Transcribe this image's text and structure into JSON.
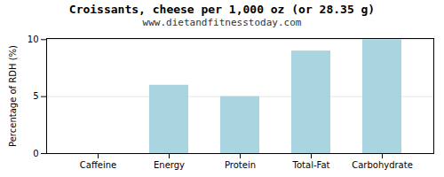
{
  "chart_data": {
    "type": "bar",
    "title": "Croissants, cheese per 1,000 oz (or 28.35 g)",
    "subtitle": "www.dietandfitnesstoday.com",
    "categories": [
      "Caffeine",
      "Energy",
      "Protein",
      "Total-Fat",
      "Carbohydrate"
    ],
    "values": [
      0,
      6,
      5,
      9,
      10
    ],
    "color": "#a8d5e0",
    "ylabel": "Percentage of RDH (%)",
    "ylim": [
      0,
      10.1
    ],
    "yticks": [
      0,
      5,
      10
    ],
    "grid": true
  }
}
